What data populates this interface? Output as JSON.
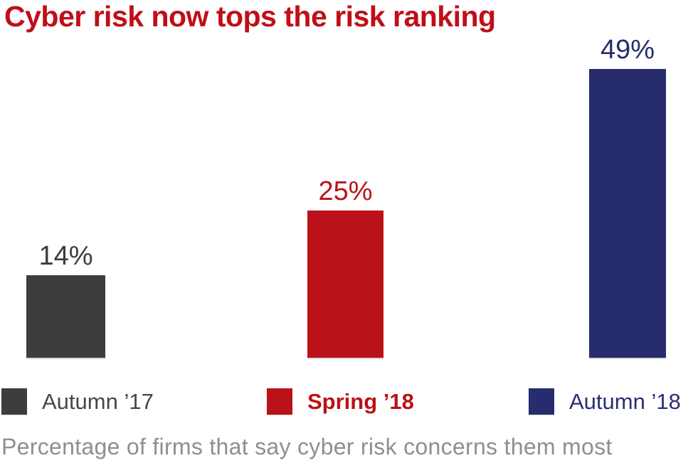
{
  "title": {
    "text": "Cyber risk now tops the risk ranking",
    "color": "#c00e17"
  },
  "chart_data": {
    "type": "bar",
    "title": "Cyber risk now tops the risk ranking",
    "categories": [
      "Autumn ’17",
      "Spring ’18",
      "Autumn ’18"
    ],
    "values": [
      14,
      25,
      49
    ],
    "value_labels": [
      "14%",
      "25%",
      "49%"
    ],
    "bar_colors": [
      "#3d3d3d",
      "#bb1118",
      "#272c6e"
    ],
    "xlabel": "",
    "ylabel": "",
    "ylim": [
      0,
      49
    ],
    "grid": false,
    "legend_position": "bottom",
    "caption": "Percentage of firms that say cyber risk concerns them most"
  },
  "legend": {
    "items": [
      {
        "label": "Autumn ’17",
        "swatch_color": "#3d3d3d",
        "text_color": "#474747",
        "bold": false
      },
      {
        "label": "Spring ’18",
        "swatch_color": "#bb1118",
        "text_color": "#bb1118",
        "bold": true
      },
      {
        "label": "Autumn ’18",
        "swatch_color": "#272c6e",
        "text_color": "#2a2f74",
        "bold": false
      }
    ]
  },
  "caption": {
    "text": "Percentage of firms that say cyber risk concerns them most",
    "color": "#8f8f8f"
  }
}
